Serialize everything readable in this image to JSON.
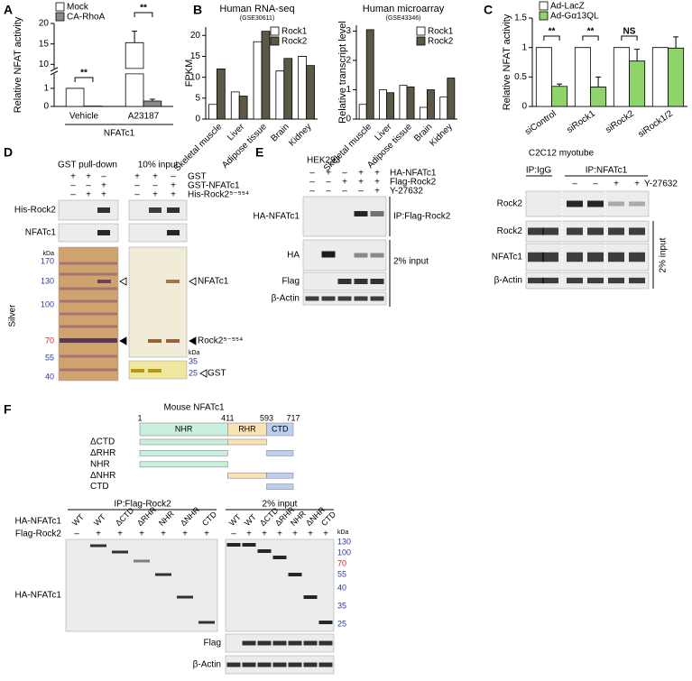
{
  "panel_labels": [
    "A",
    "B",
    "C",
    "D",
    "E",
    "F"
  ],
  "chart_data": [
    {
      "type": "bar",
      "ylabel": "Relative NFAT activity",
      "categories": [
        "Vehicle",
        "A23187"
      ],
      "group_label": "NFATc1",
      "series": [
        {
          "name": "Mock",
          "color": "#ffffff",
          "values": [
            1,
            15.3
          ],
          "errors": [
            null,
            2.8
          ]
        },
        {
          "name": "CA-RhoA",
          "color": "#8a8a8a",
          "values": [
            0.02,
            0.3
          ],
          "errors": [
            null,
            0.1
          ]
        }
      ],
      "ylim": [
        0,
        20
      ],
      "yticks": [
        0,
        1,
        10,
        15,
        20
      ],
      "axis_break": [
        1.8,
        9
      ],
      "annotations": [
        "**",
        "**"
      ]
    },
    {
      "type": "bar",
      "title": "Human RNA-seq",
      "subtitle": "(GSE30611)",
      "ylabel": "FPKM",
      "categories": [
        "Skeletal muscle",
        "Liver",
        "Adipose tissue",
        "Brain",
        "Kidney"
      ],
      "series": [
        {
          "name": "Rock1",
          "color": "#ffffff",
          "values": [
            3.5,
            6.5,
            18.5,
            11.5,
            15
          ]
        },
        {
          "name": "Rock2",
          "color": "#5b5946",
          "values": [
            12,
            5.5,
            21,
            14.5,
            12.8
          ]
        }
      ],
      "ylim": [
        0,
        22
      ],
      "yticks": [
        0,
        5,
        10,
        15,
        20
      ]
    },
    {
      "type": "bar",
      "title": "Human microarray",
      "subtitle": "(GSE43346)",
      "ylabel": "Relative transcript level",
      "categories": [
        "Skeletal muscle",
        "Liver",
        "Adipose tissue",
        "Brain",
        "Kidney"
      ],
      "series": [
        {
          "name": "Rock1",
          "color": "#ffffff",
          "values": [
            0.5,
            1.0,
            1.15,
            0.4,
            0.75
          ]
        },
        {
          "name": "Rock2",
          "color": "#5b5946",
          "values": [
            3.05,
            0.9,
            1.1,
            1.0,
            1.4
          ]
        }
      ],
      "ylim": [
        0,
        3.2
      ],
      "yticks": [
        0,
        1,
        2,
        3
      ]
    },
    {
      "type": "bar",
      "ylabel": "Relative NFAT activity",
      "categories": [
        "siControl",
        "siRock1",
        "siRock2",
        "siRock1/2"
      ],
      "series": [
        {
          "name": "Ad-LacZ",
          "color": "#ffffff",
          "values": [
            1,
            1,
            1,
            1
          ]
        },
        {
          "name": "Ad-Gα13QL",
          "color": "#8fd46b",
          "values": [
            0.34,
            0.33,
            0.77,
            0.99
          ],
          "errors": [
            0.04,
            0.17,
            0.2,
            0.19
          ]
        }
      ],
      "ylim": [
        0,
        1.5
      ],
      "yticks": [
        0,
        0.5,
        1,
        1.5
      ],
      "annotations": [
        "**",
        "**",
        "NS"
      ]
    }
  ],
  "panel_d": {
    "pulldown_title": "GST pull-down",
    "input_title": "10% input",
    "conditions": [
      {
        "name": "GST",
        "pulldown": [
          "+",
          "+",
          "–"
        ],
        "input": [
          "+",
          "+",
          "–"
        ]
      },
      {
        "name": "GST-NFATc1",
        "pulldown": [
          "–",
          "–",
          "+"
        ],
        "input": [
          "–",
          "–",
          "+"
        ]
      },
      {
        "name": "His-Rock2⁵⁻⁵⁵⁴",
        "pulldown": [
          "–",
          "+",
          "+"
        ],
        "input": [
          "–",
          "+",
          "+"
        ]
      }
    ],
    "blots": [
      "His-Rock2",
      "NFATc1"
    ],
    "gel_label": "Silver",
    "kda_label": "kDa",
    "markers": [
      170,
      130,
      100,
      70,
      55,
      40
    ],
    "marker_colors": [
      "#2b3a9c",
      "#2b3a9c",
      "#2b3a9c",
      "#d02020",
      "#2b3a9c",
      "#2b3a9c"
    ],
    "bands": [
      "NFATc1",
      "Rock2⁵⁻⁵⁵⁴"
    ],
    "input_kda_label": "kDa",
    "input_markers": [
      35,
      25
    ],
    "input_marker_colors": [
      "#2b3a9c",
      "#2b3a9c"
    ],
    "gst_band": "GST"
  },
  "panel_e": {
    "hek": {
      "title": "HEK293",
      "conditions": [
        {
          "name": "HA-NFATc1",
          "signs": [
            "–",
            "+",
            "–",
            "+",
            "+"
          ]
        },
        {
          "name": "Flag-Rock2",
          "signs": [
            "–",
            "–",
            "+",
            "+",
            "+"
          ]
        },
        {
          "name": "Y-27632",
          "signs": [
            "–",
            "–",
            "–",
            "–",
            "+"
          ]
        }
      ],
      "ip_blot": "HA-NFATc1",
      "ip_label": "IP:Flag-Rock2",
      "input_blots": [
        "HA",
        "Flag",
        "β-Actin"
      ],
      "input_label": "2% input"
    },
    "c2c12": {
      "title": "C2C12 myotube",
      "ip_groups": [
        "IP:IgG",
        "IP:NFATc1"
      ],
      "treatment": {
        "name": "Y-27632",
        "signs": [
          "–",
          "–",
          "+",
          "+"
        ]
      },
      "ip_blot": "Rock2",
      "input_blots": [
        "Rock2",
        "NFATc1",
        "β-Actin"
      ],
      "input_label": "2% input"
    }
  },
  "panel_f": {
    "title": "Mouse NFATc1",
    "residues": [
      1,
      411,
      593,
      717
    ],
    "domains": [
      {
        "name": "NHR",
        "color": "#c8f0dc"
      },
      {
        "name": "RHR",
        "color": "#fbe2b5"
      },
      {
        "name": "CTD",
        "color": "#bccff2"
      }
    ],
    "constructs": [
      "ΔCTD",
      "ΔRHR",
      "NHR",
      "ΔNHR",
      "CTD"
    ],
    "ip_label": "IP:Flag-Rock2",
    "input_label": "2% input",
    "rows": [
      {
        "name": "HA-NFATc1",
        "ip": [
          "WT",
          "WT",
          "ΔCTD",
          "ΔRHR",
          "NHR",
          "ΔNHR",
          "CTD"
        ],
        "input": [
          "WT",
          "WT",
          "ΔCTD",
          "ΔRHR",
          "NHR",
          "ΔNHR",
          "CTD"
        ]
      },
      {
        "name": "Flag-Rock2",
        "ip": [
          "–",
          "+",
          "+",
          "+",
          "+",
          "+",
          "+"
        ],
        "input": [
          "–",
          "+",
          "+",
          "+",
          "+",
          "+",
          "+"
        ]
      }
    ],
    "blots": [
      "HA-NFATc1",
      "Flag",
      "β-Actin"
    ],
    "kda_label": "kDa",
    "markers": [
      130,
      100,
      70,
      55,
      40,
      35,
      25
    ],
    "marker_colors": [
      "#2b3a9c",
      "#2b3a9c",
      "#d02020",
      "#2b3a9c",
      "#2b3a9c",
      "#2b3a9c",
      "#2b3a9c"
    ]
  }
}
